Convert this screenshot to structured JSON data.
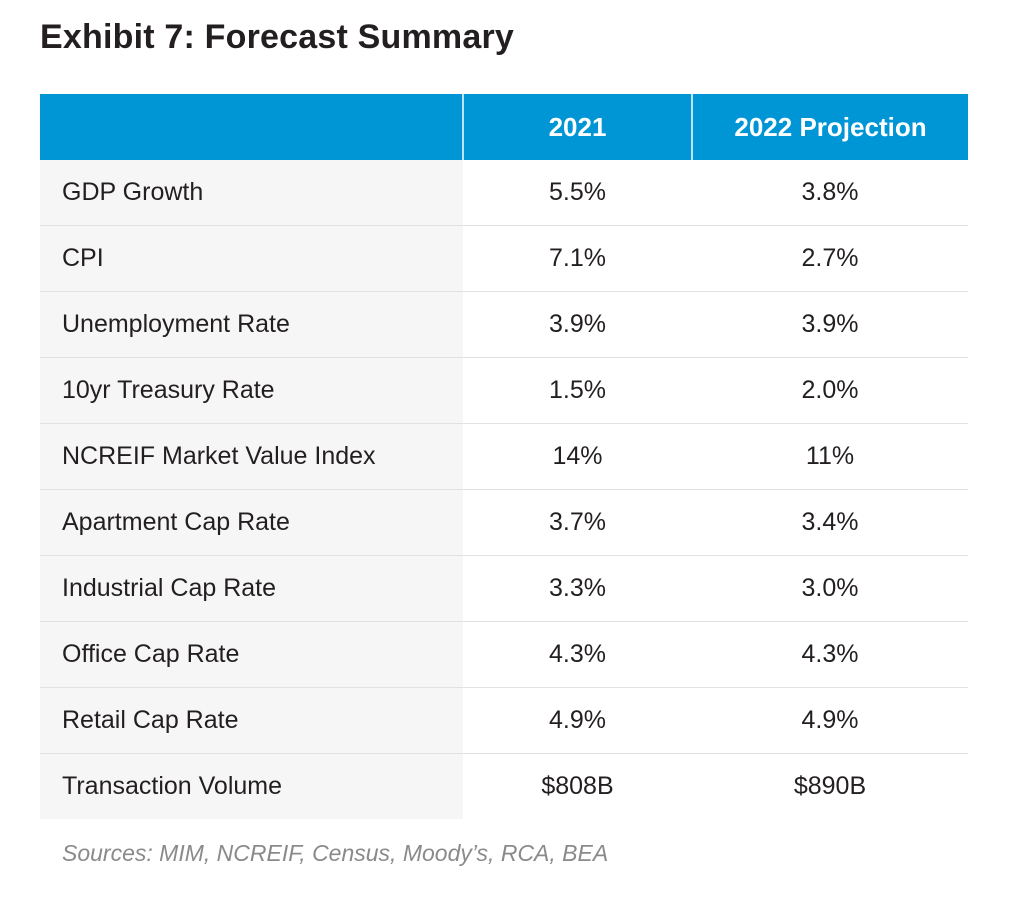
{
  "title": "Exhibit 7: Forecast Summary",
  "table": {
    "headers": [
      "",
      "2021",
      "2022 Projection"
    ],
    "rows": [
      [
        "GDP Growth",
        "5.5%",
        "3.8%"
      ],
      [
        "CPI",
        "7.1%",
        "2.7%"
      ],
      [
        "Unemployment Rate",
        "3.9%",
        "3.9%"
      ],
      [
        "10yr Treasury Rate",
        "1.5%",
        "2.0%"
      ],
      [
        "NCREIF Market Value Index",
        "14%",
        "11%"
      ],
      [
        "Apartment Cap Rate",
        "3.7%",
        "3.4%"
      ],
      [
        "Industrial Cap Rate",
        "3.3%",
        "3.0%"
      ],
      [
        "Office Cap Rate",
        "4.3%",
        "4.3%"
      ],
      [
        "Retail Cap Rate",
        "4.9%",
        "4.9%"
      ],
      [
        "Transaction Volume",
        "$808B",
        "$890B"
      ]
    ]
  },
  "sources": "Sources: MIM, NCREIF, Census, Moody’s, RCA, BEA",
  "colors": {
    "header_bg": "#0096d6",
    "label_bg": "#f6f6f6"
  }
}
